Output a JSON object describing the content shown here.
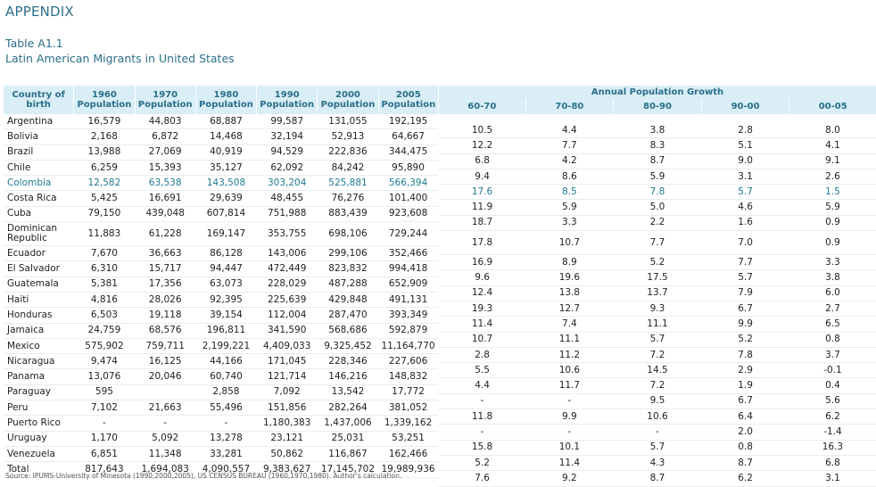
{
  "heading": "APPENDIX",
  "table_label": "Table A1.1",
  "table_title": "Latin American Migrants in United States",
  "population_headers": [
    {
      "line1": "Country of",
      "line2": "birth"
    },
    {
      "line1": "1960",
      "line2": "Population"
    },
    {
      "line1": "1970",
      "line2": "Population"
    },
    {
      "line1": "1980",
      "line2": "Population"
    },
    {
      "line1": "1990",
      "line2": "Population"
    },
    {
      "line1": "2000",
      "line2": "Population"
    },
    {
      "line1": "2005",
      "line2": "Population"
    }
  ],
  "population_rows": [
    [
      "Argentina",
      "16,579",
      "44,803",
      "68,887",
      "99,587",
      "131,055",
      "192,195"
    ],
    [
      "Bolivia",
      "2,168",
      "6,872",
      "14,468",
      "32,194",
      "52,913",
      "64,667"
    ],
    [
      "Brazil",
      "13,988",
      "27,069",
      "40,919",
      "94,529",
      "222,836",
      "344,475"
    ],
    [
      "Chile",
      "6,259",
      "15,393",
      "35,127",
      "62,092",
      "84,242",
      "95,890"
    ],
    [
      "Colombia",
      "12,582",
      "63,538",
      "143,508",
      "303,204",
      "525,881",
      "566,394"
    ],
    [
      "Costa Rica",
      "5,425",
      "16,691",
      "29,639",
      "48,455",
      "76,276",
      "101,400"
    ],
    [
      "Cuba",
      "79,150",
      "439,048",
      "607,814",
      "751,988",
      "883,439",
      "923,608"
    ],
    [
      "Dominican Republic",
      "11,883",
      "61,228",
      "169,147",
      "353,755",
      "698,106",
      "729,244"
    ],
    [
      "Ecuador",
      "7,670",
      "36,663",
      "86,128",
      "143,006",
      "299,106",
      "352,466"
    ],
    [
      "El Salvador",
      "6,310",
      "15,717",
      "94,447",
      "472,449",
      "823,832",
      "994,418"
    ],
    [
      "Guatemala",
      "5,381",
      "17,356",
      "63,073",
      "228,029",
      "487,288",
      "652,909"
    ],
    [
      "Haiti",
      "4,816",
      "28,026",
      "92,395",
      "225,639",
      "429,848",
      "491,131"
    ],
    [
      "Honduras",
      "6,503",
      "19,118",
      "39,154",
      "112,004",
      "287,470",
      "393,349"
    ],
    [
      "Jamaica",
      "24,759",
      "68,576",
      "196,811",
      "341,590",
      "568,686",
      "592,879"
    ],
    [
      "Mexico",
      "575,902",
      "759,711",
      "2,199,221",
      "4,409,033",
      "9,325,452",
      "11,164,770"
    ],
    [
      "Nicaragua",
      "9,474",
      "16,125",
      "44,166",
      "171,045",
      "228,346",
      "227,606"
    ],
    [
      "Panama",
      "13,076",
      "20,046",
      "60,740",
      "121,714",
      "146,216",
      "148,832"
    ],
    [
      "Paraguay",
      "595",
      "",
      "2,858",
      "7,092",
      "13,542",
      "17,772"
    ],
    [
      "Peru",
      "7,102",
      "21,663",
      "55,496",
      "151,856",
      "282,264",
      "381,052"
    ],
    [
      "Puerto Rico",
      "-",
      "-",
      "-",
      "1,180,383",
      "1,437,006",
      "1,339,162"
    ],
    [
      "Uruguay",
      "1,170",
      "5,092",
      "13,278",
      "23,121",
      "25,031",
      "53,251"
    ],
    [
      "Venezuela",
      "6,851",
      "11,348",
      "33,281",
      "50,862",
      "116,867",
      "162,466"
    ],
    [
      "Total",
      "817,643",
      "1,694,083",
      "4,090,557",
      "9,383,627",
      "17,145,702",
      "19,989,936"
    ]
  ],
  "growth_header": "Annual Population Growth",
  "growth_periods": [
    "60-70",
    "70-80",
    "80-90",
    "90-00",
    "00-05"
  ],
  "growth_rows": [
    [
      "10.5",
      "4.4",
      "3.8",
      "2.8",
      "8.0"
    ],
    [
      "12.2",
      "7.7",
      "8.3",
      "5.1",
      "4.1"
    ],
    [
      "6.8",
      "4.2",
      "8.7",
      "9.0",
      "9.1"
    ],
    [
      "9.4",
      "8.6",
      "5.9",
      "3.1",
      "2.6"
    ],
    [
      "17.6",
      "8.5",
      "7.8",
      "5.7",
      "1.5"
    ],
    [
      "11.9",
      "5.9",
      "5.0",
      "4.6",
      "5.9"
    ],
    [
      "18.7",
      "3.3",
      "2.2",
      "1.6",
      "0.9"
    ],
    [
      "17.8",
      "10.7",
      "7.7",
      "7.0",
      "0.9"
    ],
    [
      "16.9",
      "8.9",
      "5.2",
      "7.7",
      "3.3"
    ],
    [
      "9.6",
      "19.6",
      "17.5",
      "5.7",
      "3.8"
    ],
    [
      "12.4",
      "13.8",
      "13.7",
      "7.9",
      "6.0"
    ],
    [
      "19.3",
      "12.7",
      "9.3",
      "6.7",
      "2.7"
    ],
    [
      "11.4",
      "7.4",
      "11.1",
      "9.9",
      "6.5"
    ],
    [
      "10.7",
      "11.1",
      "5.7",
      "5.2",
      "0.8"
    ],
    [
      "2.8",
      "11.2",
      "7.2",
      "7.8",
      "3.7"
    ],
    [
      "5.5",
      "10.6",
      "14.5",
      "2.9",
      "-0.1"
    ],
    [
      "4.4",
      "11.7",
      "7.2",
      "1.9",
      "0.4"
    ],
    [
      "-",
      "-",
      "9.5",
      "6.7",
      "5.6"
    ],
    [
      "11.8",
      "9.9",
      "10.6",
      "6.4",
      "6.2"
    ],
    [
      "-",
      "-",
      "-",
      "2.0",
      "-1.4"
    ],
    [
      "15.8",
      "10.1",
      "5.7",
      "0.8",
      "16.3"
    ],
    [
      "5.2",
      "11.4",
      "4.3",
      "8.7",
      "6.8"
    ],
    [
      "7.6",
      "9.2",
      "8.7",
      "6.2",
      "3.1"
    ]
  ],
  "highlight_row": "Colombia",
  "source": "Source: IPUMS-University of Minesota (1990,2000,2005), US CENSUS BUREAU (1960,1970,1980). Author's calculation.",
  "colors": {
    "accent": "#2b6f8a",
    "header_bg": "#d9eef6",
    "highlight_text": "#1f7a8f",
    "row_rule": "#e6eef2"
  }
}
